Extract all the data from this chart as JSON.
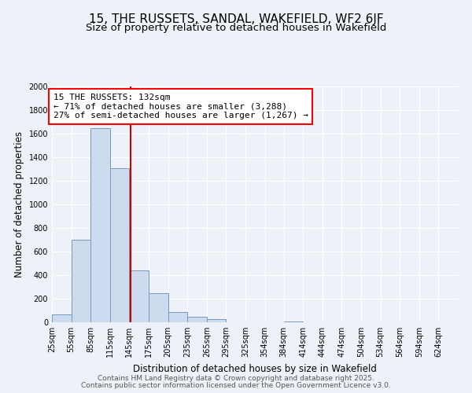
{
  "title1": "15, THE RUSSETS, SANDAL, WAKEFIELD, WF2 6JF",
  "title2": "Size of property relative to detached houses in Wakefield",
  "xlabel": "Distribution of detached houses by size in Wakefield",
  "ylabel": "Number of detached properties",
  "bar_color": "#ccdcee",
  "bar_edge_color": "#7799bb",
  "background_color": "#eef2f8",
  "grid_color": "#ffffff",
  "annotation_text": "15 THE RUSSETS: 132sqm\n← 71% of detached houses are smaller (3,288)\n27% of semi-detached houses are larger (1,267) →",
  "vline_x": 132,
  "vline_color": "#cc0000",
  "bin_edges": [
    10,
    40,
    70,
    100,
    130,
    160,
    190,
    220,
    250,
    280,
    310,
    340,
    369,
    399,
    429,
    459,
    489,
    519,
    549,
    579,
    609,
    639
  ],
  "bin_values": [
    65,
    700,
    1650,
    1310,
    440,
    250,
    85,
    50,
    25,
    0,
    0,
    0,
    10,
    0,
    0,
    0,
    0,
    0,
    0,
    0,
    0
  ],
  "xtick_labels": [
    "25sqm",
    "55sqm",
    "85sqm",
    "115sqm",
    "145sqm",
    "175sqm",
    "205sqm",
    "235sqm",
    "265sqm",
    "295sqm",
    "325sqm",
    "354sqm",
    "384sqm",
    "414sqm",
    "444sqm",
    "474sqm",
    "504sqm",
    "534sqm",
    "564sqm",
    "594sqm",
    "624sqm"
  ],
  "ylim": [
    0,
    2000
  ],
  "yticks": [
    0,
    200,
    400,
    600,
    800,
    1000,
    1200,
    1400,
    1600,
    1800,
    2000
  ],
  "footer1": "Contains HM Land Registry data © Crown copyright and database right 2025.",
  "footer2": "Contains public sector information licensed under the Open Government Licence v3.0.",
  "title_fontsize": 11,
  "subtitle_fontsize": 9.5,
  "axis_label_fontsize": 8.5,
  "tick_fontsize": 7,
  "footer_fontsize": 6.5,
  "annot_fontsize": 8
}
